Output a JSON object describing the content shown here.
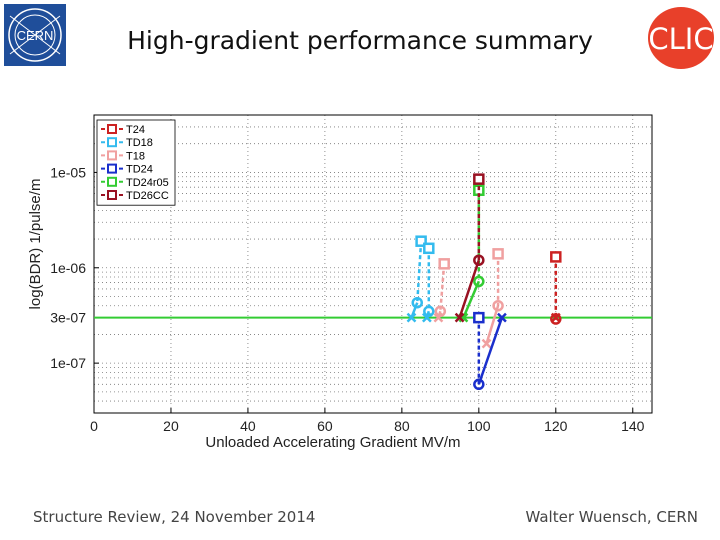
{
  "slide": {
    "title": "High-gradient performance summary",
    "footer_left": "Structure Review, 24 November 2014",
    "footer_right": "Walter Wuensch, CERN",
    "cern_logo_text": "CERN",
    "clic_logo_text": "CLIC"
  },
  "chart_data": {
    "type": "line",
    "xlabel": "Unloaded Accelerating Gradient MV/m",
    "ylabel": "log(BDR) 1/pulse/m",
    "xlim": [
      0,
      145
    ],
    "ylim": [
      3e-08,
      4e-05
    ],
    "y_scale": "log",
    "x_ticks": [
      0,
      20,
      40,
      60,
      80,
      100,
      120,
      140
    ],
    "x_tick_labels": [
      "0",
      "20",
      "40",
      "60",
      "80",
      "100",
      "120",
      "140"
    ],
    "y_ticks": [
      1e-07,
      3e-07,
      1e-06,
      1e-05
    ],
    "y_tick_labels": [
      "1e-07",
      "3e-07",
      "1e-06",
      "1e-05"
    ],
    "grid": true,
    "legend_position": "top-left",
    "reference_line": {
      "y": 3e-07,
      "color": "#33cc33"
    },
    "series": [
      {
        "name": "T24",
        "color": "#cc2222",
        "dash": "dashed",
        "square": {
          "x": 120,
          "y": 1.3e-06
        },
        "circle": {
          "x": 120,
          "y": 2.9e-07
        },
        "cross": {
          "x": 120,
          "y": 3e-07
        }
      },
      {
        "name": "TD18",
        "color": "#33bbee",
        "dash": "dashed",
        "square": {
          "x": 85,
          "y": 1.9e-06
        },
        "circle": {
          "x": 84,
          "y": 4.3e-07
        },
        "cross": {
          "x": 82.5,
          "y": 3e-07
        }
      },
      {
        "name": "TD18",
        "color": "#33bbee",
        "dash": "dashed",
        "square": {
          "x": 87,
          "y": 1.6e-06
        },
        "circle": {
          "x": 87,
          "y": 3.5e-07
        },
        "cross": {
          "x": 86.5,
          "y": 3e-07
        }
      },
      {
        "name": "T18",
        "color": "#f0a0a0",
        "dash": "dashed",
        "square": {
          "x": 91,
          "y": 1.1e-06
        },
        "circle": {
          "x": 90,
          "y": 3.5e-07
        },
        "cross": {
          "x": 89.5,
          "y": 3e-07
        }
      },
      {
        "name": "T18",
        "color": "#f0a0a0",
        "dash": "dashed",
        "square": {
          "x": 105,
          "y": 1.4e-06
        },
        "circle": {
          "x": 105,
          "y": 4e-07
        },
        "cross": {
          "x": 102,
          "y": 1.6e-07
        }
      },
      {
        "name": "TD24",
        "color": "#1a2fcc",
        "dash": "dashed",
        "square": {
          "x": 100,
          "y": 3e-07
        },
        "circle": {
          "x": 100,
          "y": 6e-08
        },
        "cross": {
          "x": 106,
          "y": 3e-07
        }
      },
      {
        "name": "TD24r05",
        "color": "#33cc33",
        "dash": "dashed",
        "square": {
          "x": 100,
          "y": 6.5e-06
        },
        "circle": {
          "x": 100,
          "y": 7.2e-07
        },
        "cross": {
          "x": 96,
          "y": 3e-07
        }
      },
      {
        "name": "TD26CC",
        "color": "#991122",
        "dash": "dashed",
        "square": {
          "x": 100,
          "y": 8.5e-06
        },
        "circle": {
          "x": 100,
          "y": 1.2e-06
        },
        "cross": {
          "x": 95,
          "y": 3e-07
        }
      }
    ],
    "legend": [
      {
        "name": "T24",
        "color": "#cc2222"
      },
      {
        "name": "TD18",
        "color": "#33bbee"
      },
      {
        "name": "T18",
        "color": "#f0a0a0"
      },
      {
        "name": "TD24",
        "color": "#1a2fcc"
      },
      {
        "name": "TD24r05",
        "color": "#33cc33"
      },
      {
        "name": "TD26CC",
        "color": "#991122"
      }
    ]
  }
}
